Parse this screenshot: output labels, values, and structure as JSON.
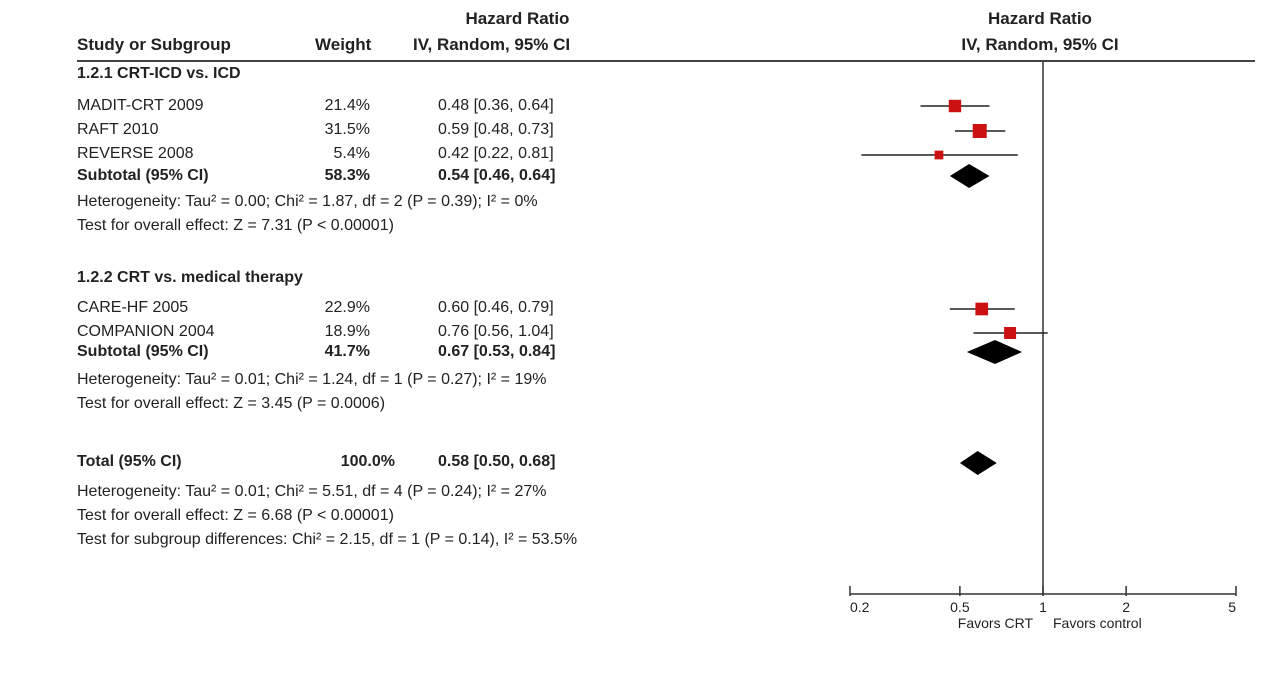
{
  "header": {
    "col_study": "Study or Subgroup",
    "col_weight": "Weight",
    "col_hr_line1": "Hazard Ratio",
    "col_hr_line2": "IV, Random, 95% CI",
    "plot_hr_line1": "Hazard Ratio",
    "plot_hr_line2": "IV, Random, 95% CI"
  },
  "groups": [
    {
      "title": "1.2.1 CRT-ICD vs. ICD",
      "studies": [
        {
          "name": "MADIT-CRT 2009",
          "weight": "21.4%",
          "ci_text": "0.48 [0.36, 0.64]"
        },
        {
          "name": "RAFT 2010",
          "weight": "31.5%",
          "ci_text": "0.59 [0.48, 0.73]"
        },
        {
          "name": "REVERSE 2008",
          "weight": "5.4%",
          "ci_text": "0.42 [0.22, 0.81]"
        }
      ],
      "subtotal": {
        "label": "Subtotal (95% CI)",
        "weight": "58.3%",
        "ci_text": "0.54 [0.46, 0.64]"
      },
      "heterogeneity": "Heterogeneity: Tau² = 0.00; Chi² = 1.87, df = 2 (P = 0.39); I² = 0%",
      "overall_effect": "Test for overall effect: Z = 7.31 (P < 0.00001)"
    },
    {
      "title": "1.2.2 CRT vs. medical therapy",
      "studies": [
        {
          "name": "CARE-HF 2005",
          "weight": "22.9%",
          "ci_text": "0.60 [0.46, 0.79]"
        },
        {
          "name": "COMPANION 2004",
          "weight": "18.9%",
          "ci_text": "0.76 [0.56, 1.04]"
        }
      ],
      "subtotal": {
        "label": "Subtotal (95% CI)",
        "weight": "41.7%",
        "ci_text": "0.67 [0.53, 0.84]"
      },
      "heterogeneity": "Heterogeneity: Tau² = 0.01; Chi² = 1.24, df = 1 (P = 0.27); I² = 19%",
      "overall_effect": "Test for overall effect: Z = 3.45 (P = 0.0006)"
    }
  ],
  "total": {
    "label": "Total (95% CI)",
    "weight": "100.0%",
    "ci_text": "0.58 [0.50, 0.68]",
    "heterogeneity": "Heterogeneity: Tau² = 0.01; Chi² = 5.51, df = 4 (P = 0.24); I² = 27%",
    "overall_effect": "Test for overall effect: Z = 6.68 (P < 0.00001)",
    "subgroup_diff": "Test for subgroup differences: Chi² = 2.15, df = 1 (P = 0.14), I² = 53.5%"
  },
  "chart_data": {
    "type": "forest",
    "title": "Hazard Ratio",
    "subtitle": "IV, Random, 95% CI",
    "x_scale": "log",
    "xlim": [
      0.2,
      5
    ],
    "ticks": [
      0.2,
      0.5,
      1,
      2,
      5
    ],
    "tick_labels": [
      "0.2",
      "0.5",
      "1",
      "2",
      "5"
    ],
    "reference_line": 1,
    "xlabel_left": "Favors CRT",
    "xlabel_right": "Favors control",
    "marker_color": "#cc1111",
    "diamond_color": "#000000",
    "rows": [
      {
        "id": "madit",
        "kind": "study",
        "est": 0.48,
        "lo": 0.36,
        "hi": 0.64,
        "weight": 21.4
      },
      {
        "id": "raft",
        "kind": "study",
        "est": 0.59,
        "lo": 0.48,
        "hi": 0.73,
        "weight": 31.5
      },
      {
        "id": "reverse",
        "kind": "study",
        "est": 0.42,
        "lo": 0.22,
        "hi": 0.81,
        "weight": 5.4
      },
      {
        "id": "sub1",
        "kind": "diamond",
        "est": 0.54,
        "lo": 0.46,
        "hi": 0.64
      },
      {
        "id": "carehf",
        "kind": "study",
        "est": 0.6,
        "lo": 0.46,
        "hi": 0.79,
        "weight": 22.9
      },
      {
        "id": "companion",
        "kind": "study",
        "est": 0.76,
        "lo": 0.56,
        "hi": 1.04,
        "weight": 18.9
      },
      {
        "id": "sub2",
        "kind": "diamond",
        "est": 0.67,
        "lo": 0.53,
        "hi": 0.84
      },
      {
        "id": "total",
        "kind": "diamond",
        "est": 0.58,
        "lo": 0.5,
        "hi": 0.68
      }
    ]
  }
}
